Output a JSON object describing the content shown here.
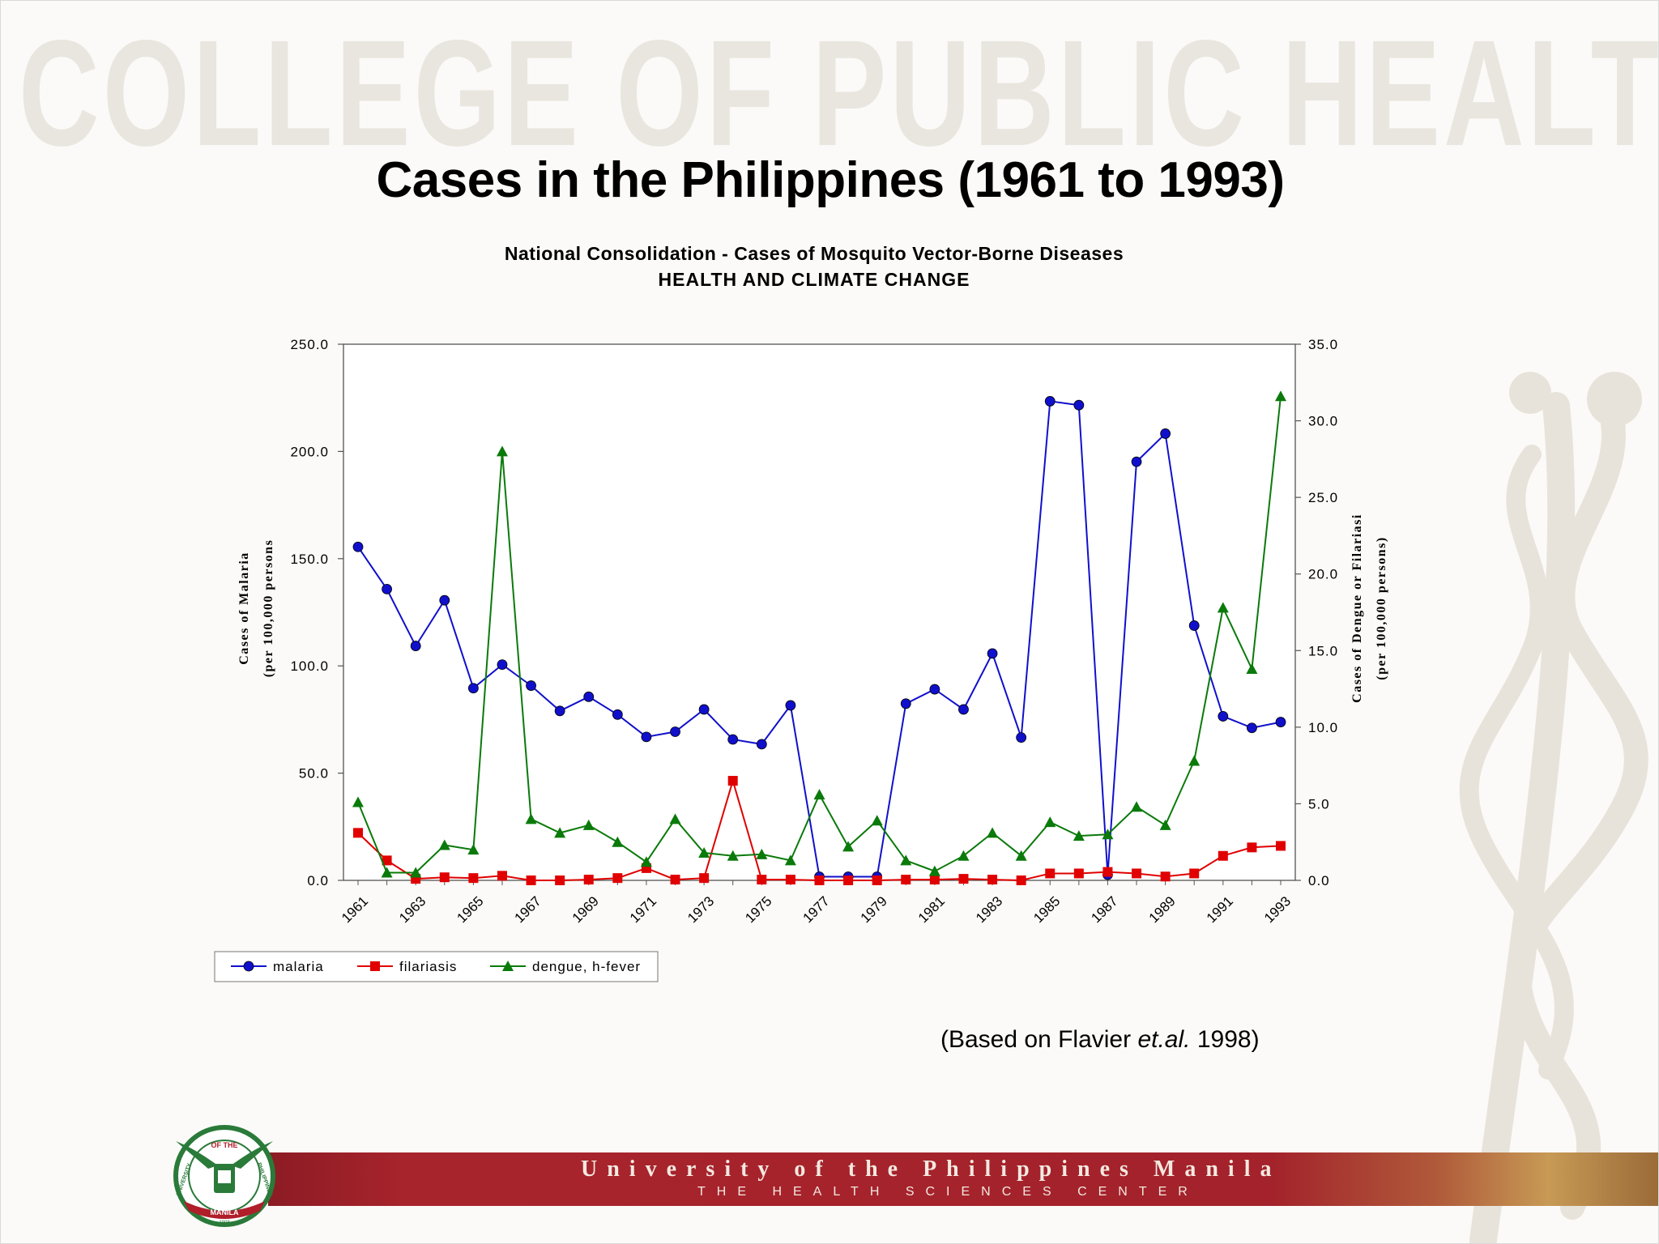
{
  "watermark": "COLLEGE OF PUBLIC HEALTH",
  "slide_title": "Cases in the Philippines (1961 to 1993)",
  "citation": {
    "prefix": "(Based on Flavier ",
    "italic": "et.al.",
    "suffix": " 1998)"
  },
  "footer": {
    "university": "University of the Philippines Manila",
    "center": "THE HEALTH SCIENCES CENTER",
    "logo_text_top": "OF THE",
    "logo_text_left": "UNIVERSITY",
    "logo_text_right": "PHILIPPINES",
    "logo_text_bottom": "MANILA",
    "logo_year": "1908"
  },
  "colors": {
    "malaria": "#1010cc",
    "filariasis": "#e00000",
    "dengue": "#0a7a0a"
  },
  "chart_data": {
    "type": "line",
    "title": "National Consolidation - Cases of Mosquito Vector-Borne Diseases",
    "subtitle": "HEALTH AND CLIMATE CHANGE",
    "ylabel_left": [
      "Cases of Malaria",
      "(per 100,000 persons"
    ],
    "ylabel_right": [
      "Cases of Dengue or Filariasi",
      "(per 100,000 persons)"
    ],
    "ylim_left": [
      0,
      250
    ],
    "ylim_right": [
      0,
      35
    ],
    "yticks_left": [
      "0.0",
      "50.0",
      "100.0",
      "150.0",
      "200.0",
      "250.0"
    ],
    "yticks_right": [
      "0.0",
      "5.0",
      "10.0",
      "15.0",
      "20.0",
      "25.0",
      "30.0",
      "35.0"
    ],
    "x_tick_labels": [
      "1961",
      "1963",
      "1965",
      "1967",
      "1969",
      "1971",
      "1973",
      "1975",
      "1977",
      "1979",
      "1981",
      "1983",
      "1985",
      "1987",
      "1989",
      "1991",
      "1993"
    ],
    "x": [
      1961,
      1962,
      1963,
      1964,
      1965,
      1966,
      1967,
      1968,
      1969,
      1970,
      1971,
      1972,
      1973,
      1974,
      1975,
      1976,
      1977,
      1978,
      1979,
      1980,
      1981,
      1982,
      1983,
      1984,
      1985,
      1986,
      1987,
      1988,
      1989,
      1990,
      1991,
      1992,
      1993
    ],
    "legend_position": "bottom-left",
    "series": [
      {
        "name": "malaria",
        "axis": "left",
        "marker": "circle",
        "values": [
          155.5,
          135.8,
          109.3,
          130.6,
          89.6,
          100.6,
          90.8,
          79.0,
          85.6,
          77.3,
          66.9,
          69.3,
          79.7,
          65.7,
          63.5,
          81.6,
          1.7,
          1.7,
          1.7,
          82.4,
          89.1,
          79.7,
          105.8,
          66.6,
          223.4,
          221.6,
          2.6,
          195.2,
          208.3,
          118.8,
          76.5,
          71.1,
          73.8
        ]
      },
      {
        "name": "filariasis",
        "axis": "right",
        "marker": "square",
        "values": [
          3.1,
          1.3,
          0.1,
          0.2,
          0.15,
          0.3,
          0.0,
          0.0,
          0.05,
          0.15,
          0.8,
          0.05,
          0.15,
          6.5,
          0.05,
          0.05,
          0.0,
          0.0,
          0.0,
          0.05,
          0.05,
          0.1,
          0.05,
          0.0,
          0.45,
          0.45,
          0.55,
          0.45,
          0.25,
          0.45,
          1.6,
          2.15,
          2.25
        ]
      },
      {
        "name": "dengue, h-fever",
        "axis": "right",
        "marker": "triangle",
        "values": [
          5.1,
          0.5,
          0.5,
          2.3,
          2.0,
          28.0,
          4.0,
          3.1,
          3.6,
          2.5,
          1.2,
          4.0,
          1.8,
          1.6,
          1.7,
          1.3,
          5.6,
          2.2,
          3.9,
          1.3,
          0.6,
          1.6,
          3.1,
          1.6,
          3.8,
          2.9,
          3.0,
          4.8,
          3.6,
          7.8,
          17.8,
          13.8,
          31.6
        ]
      }
    ]
  }
}
